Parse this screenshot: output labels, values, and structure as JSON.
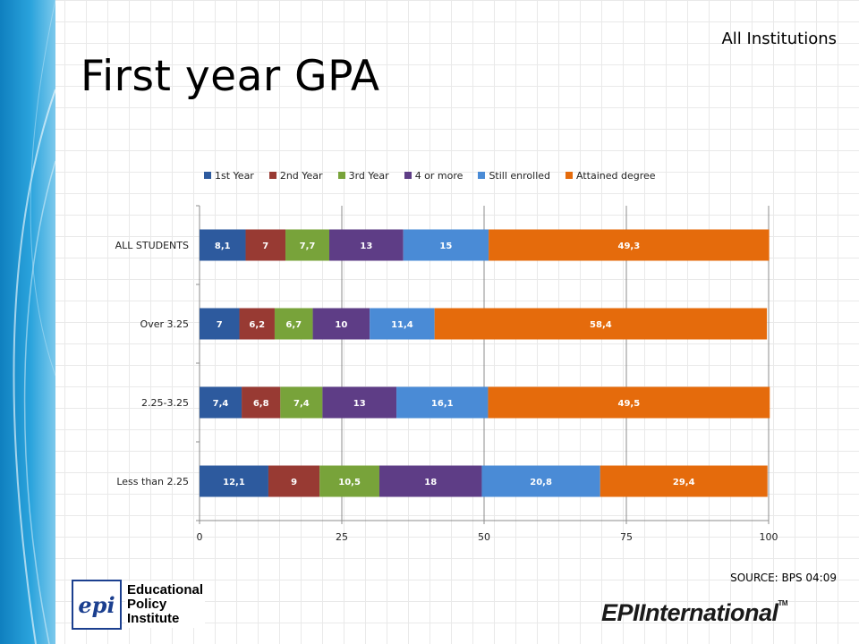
{
  "slide": {
    "title": "First year GPA",
    "subtitle": "All Institutions",
    "source": "SOURCE: BPS 04:09"
  },
  "logos": {
    "epi_mark": "epi",
    "epi_text": [
      "Educational",
      "Policy",
      "Institute"
    ],
    "epi_international": "EPIInternational",
    "epi_international_tm": "TM"
  },
  "chart_data": {
    "type": "bar",
    "orientation": "horizontal",
    "stacked": true,
    "categories": [
      "ALL STUDENTS",
      "Over 3.25",
      "2.25-3.25",
      "Less than 2.25"
    ],
    "series": [
      {
        "name": "1st Year",
        "color": "#2d5a9e",
        "values": [
          8.1,
          7,
          7.4,
          12.1
        ],
        "labels": [
          "8,1",
          "7",
          "7,4",
          "12,1"
        ]
      },
      {
        "name": "2nd Year",
        "color": "#983a33",
        "values": [
          7,
          6.2,
          6.8,
          9
        ],
        "labels": [
          "7",
          "6,2",
          "6,8",
          "9"
        ]
      },
      {
        "name": "3rd Year",
        "color": "#78a33a",
        "values": [
          7.7,
          6.7,
          7.4,
          10.5
        ],
        "labels": [
          "7,7",
          "6,7",
          "7,4",
          "10,5"
        ]
      },
      {
        "name": "4 or more",
        "color": "#5e3d86",
        "values": [
          13,
          10,
          13,
          18
        ],
        "labels": [
          "13",
          "10",
          "13",
          "18"
        ]
      },
      {
        "name": "Still enrolled",
        "color": "#4a8bd6",
        "values": [
          15,
          11.4,
          16.1,
          20.8
        ],
        "labels": [
          "15",
          "11,4",
          "16,1",
          "20,8"
        ]
      },
      {
        "name": "Attained degree",
        "color": "#e56b0c",
        "values": [
          49.3,
          58.4,
          49.5,
          29.4
        ],
        "labels": [
          "49,3",
          "58,4",
          "49,5",
          "29,4"
        ]
      }
    ],
    "xlim": [
      0,
      100
    ],
    "xticks": [
      0,
      25,
      50,
      75,
      100
    ],
    "grid": true,
    "legend": "top"
  }
}
